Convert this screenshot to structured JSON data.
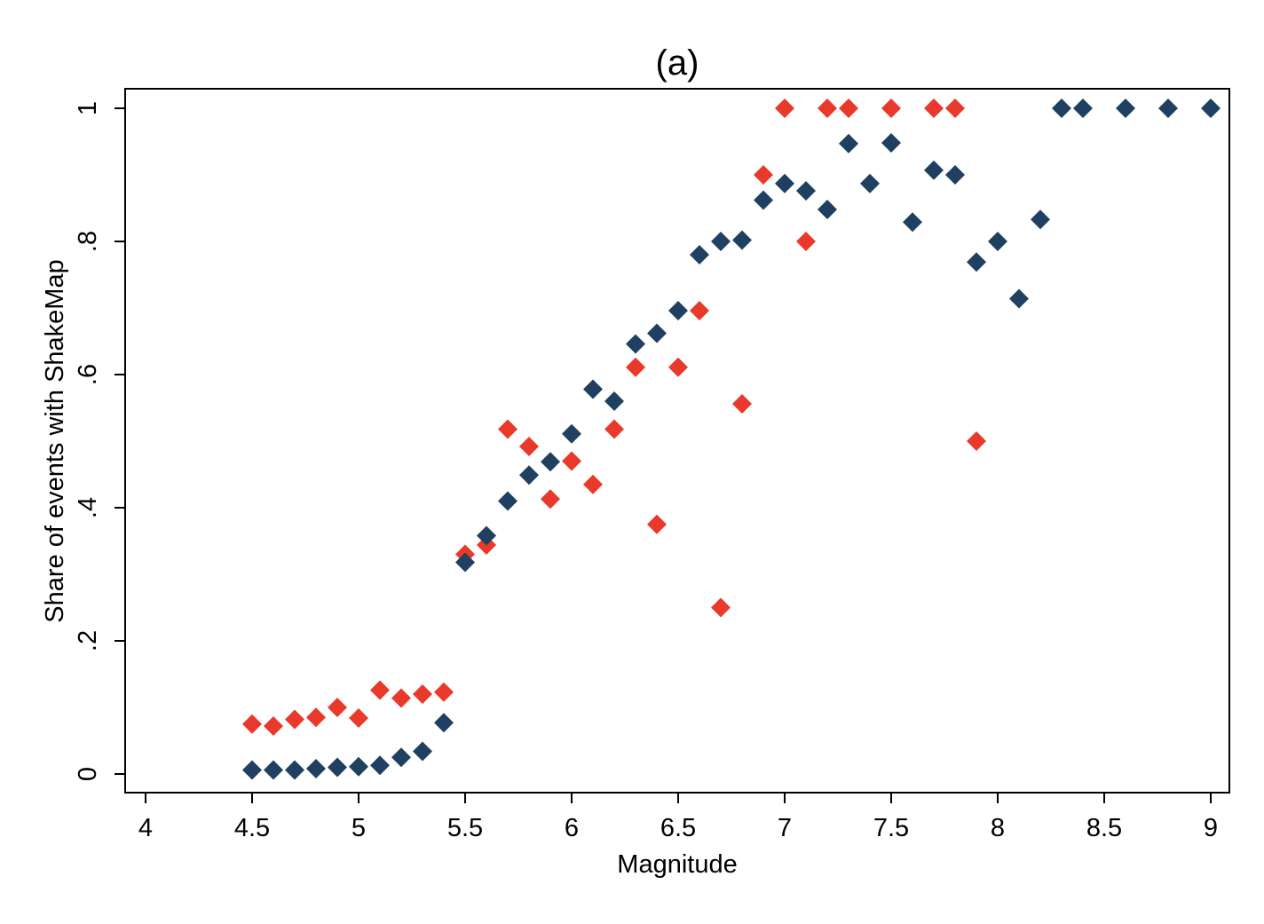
{
  "chart_data": {
    "type": "scatter",
    "title": "(a)",
    "xlabel": "Magnitude",
    "ylabel": "Share of events with ShakeMap",
    "xlim": [
      4,
      9
    ],
    "ylim": [
      0,
      1
    ],
    "x_ticks": [
      4,
      4.5,
      5,
      5.5,
      6,
      6.5,
      7,
      7.5,
      8,
      8.5,
      9
    ],
    "x_tick_labels": [
      "4",
      "4.5",
      "5",
      "5.5",
      "6",
      "6.5",
      "7",
      "7.5",
      "8",
      "8.5",
      "9"
    ],
    "y_ticks": [
      0,
      0.2,
      0.4,
      0.6,
      0.8,
      1
    ],
    "y_tick_labels": [
      "0",
      ".2",
      ".4",
      ".6",
      ".8",
      "1"
    ],
    "grid": false,
    "legend": "none",
    "marker": "diamond",
    "series": [
      {
        "color": "#e8392b",
        "points": [
          [
            4.5,
            0.075
          ],
          [
            4.6,
            0.072
          ],
          [
            4.7,
            0.082
          ],
          [
            4.8,
            0.085
          ],
          [
            4.9,
            0.1
          ],
          [
            5.0,
            0.084
          ],
          [
            5.1,
            0.126
          ],
          [
            5.2,
            0.114
          ],
          [
            5.3,
            0.12
          ],
          [
            5.4,
            0.123
          ],
          [
            5.5,
            0.33
          ],
          [
            5.6,
            0.344
          ],
          [
            5.7,
            0.518
          ],
          [
            5.8,
            0.492
          ],
          [
            5.9,
            0.413
          ],
          [
            6.0,
            0.47
          ],
          [
            6.1,
            0.435
          ],
          [
            6.2,
            0.518
          ],
          [
            6.3,
            0.611
          ],
          [
            6.4,
            0.375
          ],
          [
            6.5,
            0.611
          ],
          [
            6.6,
            0.696
          ],
          [
            6.7,
            0.25
          ],
          [
            6.8,
            0.556
          ],
          [
            6.9,
            0.9
          ],
          [
            7.0,
            1.0
          ],
          [
            7.1,
            0.8
          ],
          [
            7.2,
            1.0
          ],
          [
            7.3,
            1.0
          ],
          [
            7.5,
            1.0
          ],
          [
            7.7,
            1.0
          ],
          [
            7.8,
            1.0
          ],
          [
            7.9,
            0.5
          ]
        ]
      },
      {
        "color": "#1f4060",
        "points": [
          [
            4.5,
            0.006
          ],
          [
            4.6,
            0.006
          ],
          [
            4.7,
            0.006
          ],
          [
            4.8,
            0.008
          ],
          [
            4.9,
            0.01
          ],
          [
            5.0,
            0.011
          ],
          [
            5.1,
            0.013
          ],
          [
            5.2,
            0.025
          ],
          [
            5.3,
            0.034
          ],
          [
            5.4,
            0.077
          ],
          [
            5.5,
            0.318
          ],
          [
            5.6,
            0.358
          ],
          [
            5.7,
            0.41
          ],
          [
            5.8,
            0.449
          ],
          [
            5.9,
            0.469
          ],
          [
            6.0,
            0.511
          ],
          [
            6.1,
            0.578
          ],
          [
            6.2,
            0.56
          ],
          [
            6.3,
            0.646
          ],
          [
            6.4,
            0.662
          ],
          [
            6.5,
            0.696
          ],
          [
            6.6,
            0.78
          ],
          [
            6.7,
            0.8
          ],
          [
            6.8,
            0.802
          ],
          [
            6.9,
            0.862
          ],
          [
            7.0,
            0.887
          ],
          [
            7.1,
            0.876
          ],
          [
            7.2,
            0.848
          ],
          [
            7.3,
            0.947
          ],
          [
            7.4,
            0.887
          ],
          [
            7.5,
            0.948
          ],
          [
            7.6,
            0.829
          ],
          [
            7.7,
            0.907
          ],
          [
            7.8,
            0.9
          ],
          [
            7.9,
            0.769
          ],
          [
            8.0,
            0.8
          ],
          [
            8.1,
            0.714
          ],
          [
            8.2,
            0.833
          ],
          [
            8.3,
            1.0
          ],
          [
            8.4,
            1.0
          ],
          [
            8.6,
            1.0
          ],
          [
            8.8,
            1.0
          ],
          [
            9.0,
            1.0
          ]
        ]
      }
    ]
  }
}
